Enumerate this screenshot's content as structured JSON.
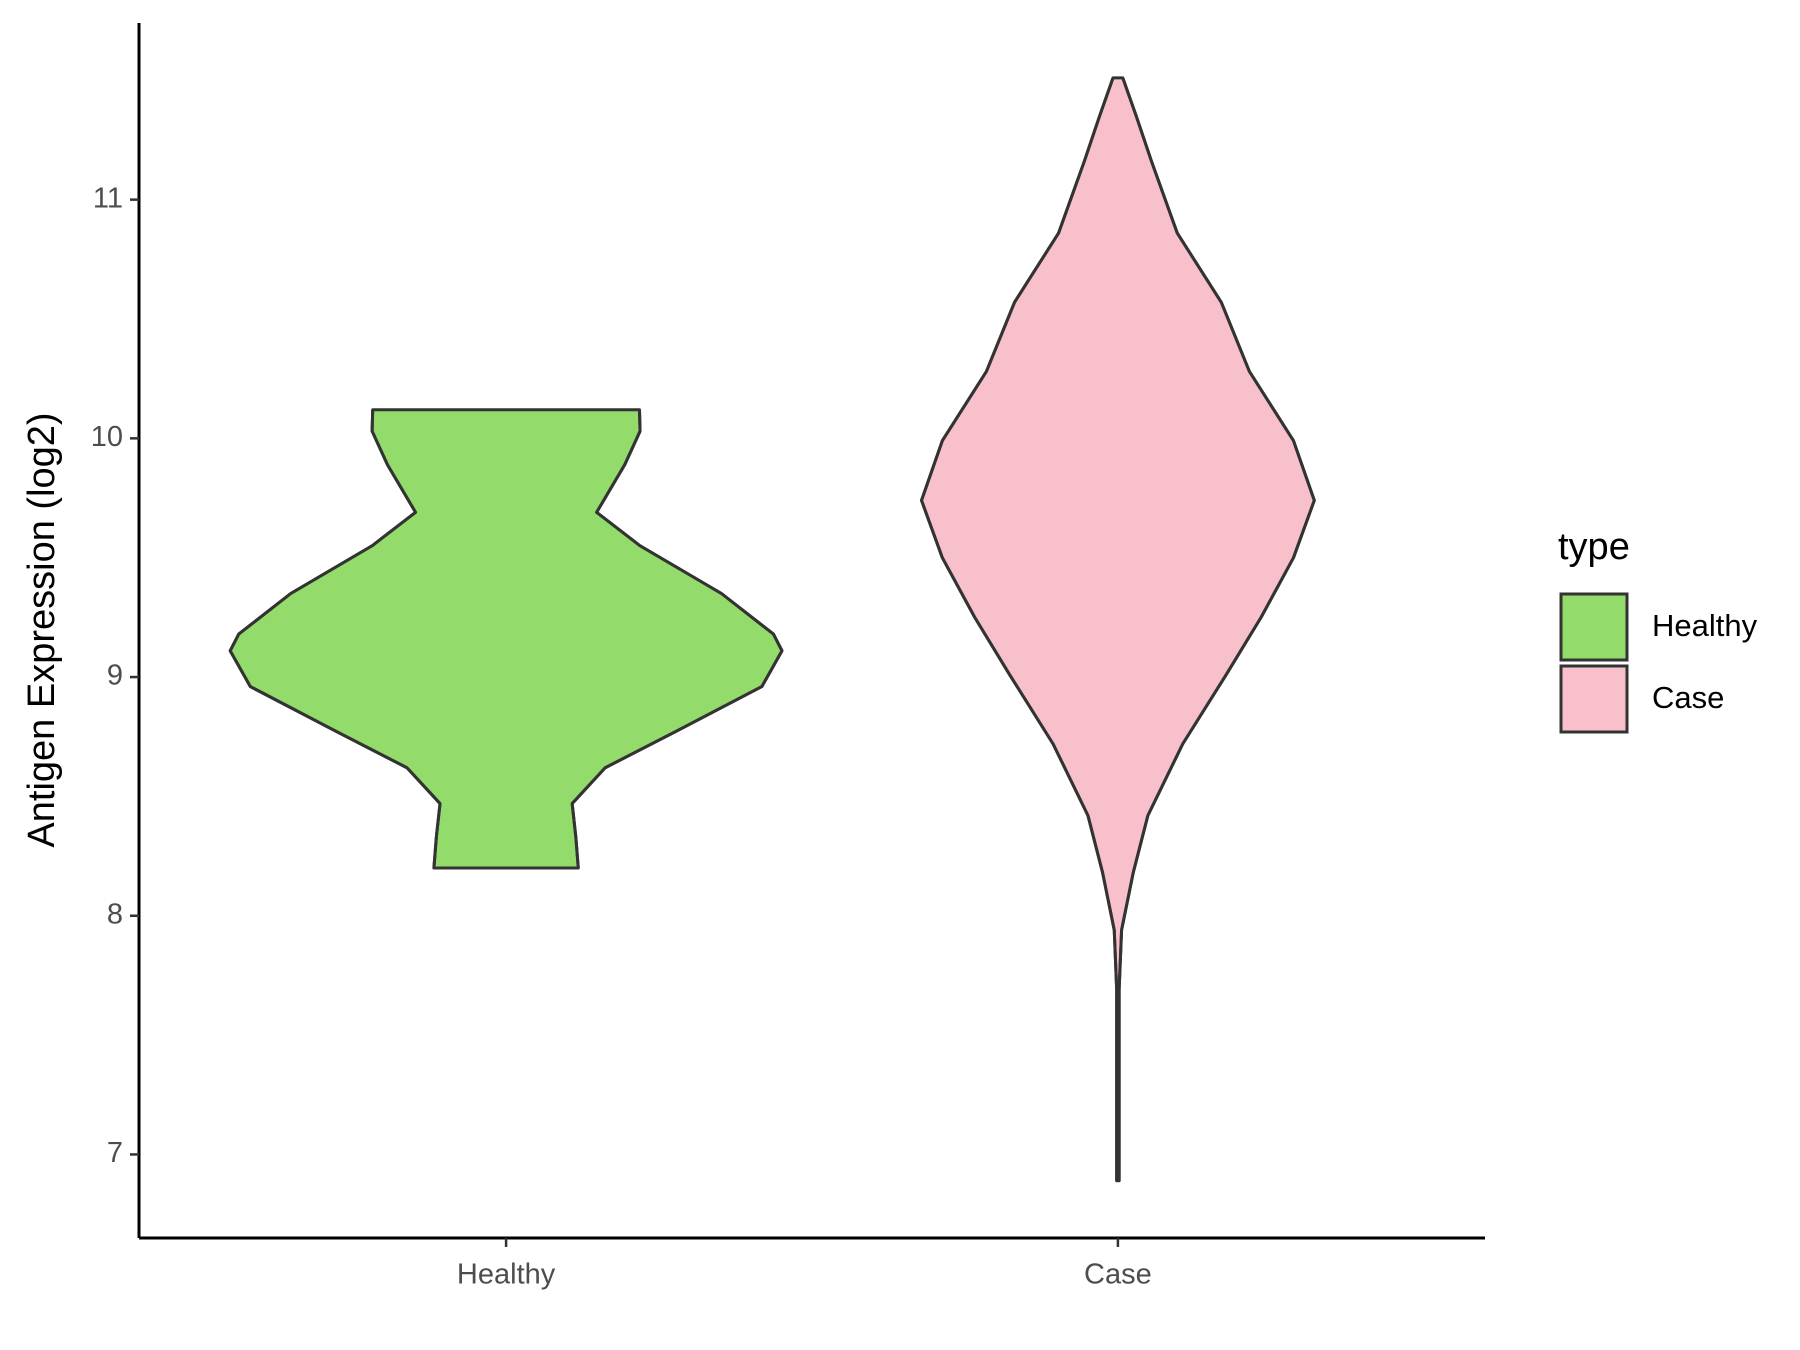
{
  "chart_data": {
    "type": "violin",
    "y_label": "Antigen Expression (log2)",
    "legend_title": "type",
    "categories": [
      "Healthy",
      "Case"
    ],
    "ylim": [
      6.65,
      11.74
    ],
    "yticks": [
      7,
      8,
      9,
      10,
      11
    ],
    "series": [
      {
        "name": "Healthy",
        "color": "#93db6a",
        "y": [
          10.12,
          10.03,
          9.89,
          9.69,
          9.55,
          9.35,
          9.18,
          9.11,
          8.96,
          8.77,
          8.62,
          8.47,
          8.33,
          8.2
        ],
        "width": [
          0.218,
          0.219,
          0.194,
          0.148,
          0.219,
          0.352,
          0.437,
          0.451,
          0.418,
          0.276,
          0.162,
          0.108,
          0.114,
          0.118
        ]
      },
      {
        "name": "Case",
        "color": "#f7c0cb",
        "y": [
          11.51,
          11.35,
          11.16,
          10.86,
          10.57,
          10.28,
          9.99,
          9.74,
          9.5,
          9.25,
          9.01,
          8.72,
          8.42,
          8.18,
          7.94,
          7.69,
          6.89
        ],
        "width": [
          0.008,
          0.03,
          0.055,
          0.097,
          0.169,
          0.215,
          0.287,
          0.321,
          0.287,
          0.234,
          0.177,
          0.106,
          0.049,
          0.025,
          0.006,
          0.002,
          0.002
        ]
      }
    ]
  }
}
